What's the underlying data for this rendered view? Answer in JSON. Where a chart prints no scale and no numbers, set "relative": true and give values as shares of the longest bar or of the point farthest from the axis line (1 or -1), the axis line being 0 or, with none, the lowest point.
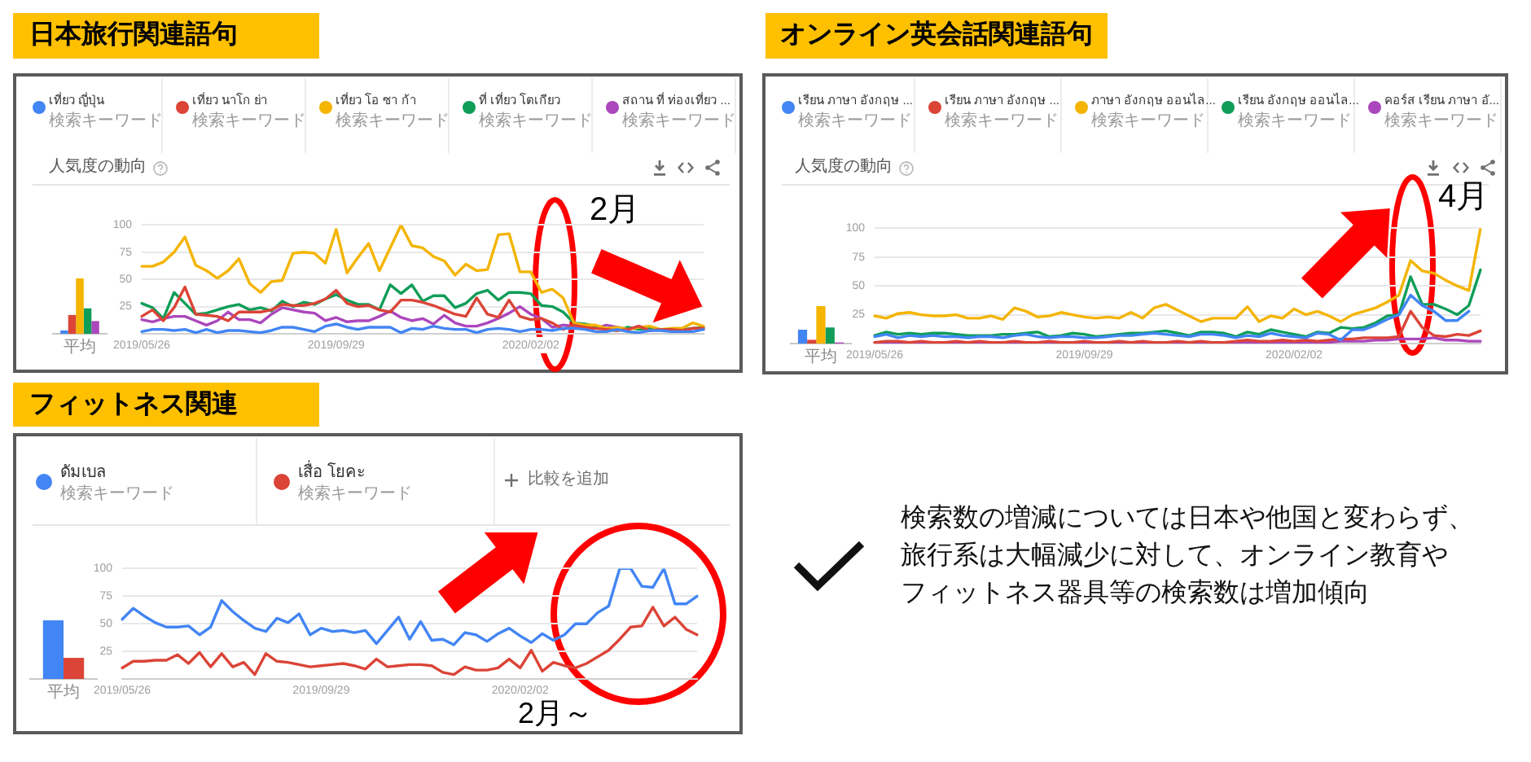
{
  "chart_data": [
    {
      "type": "line",
      "title": "日本旅行関連語句",
      "subtitle": "人気度の動向",
      "legend_title": "検索キーワード",
      "annotations": [
        "2月"
      ],
      "legend": "top",
      "grid": "y",
      "ylim": [
        0,
        100
      ],
      "yticks": [
        25,
        50,
        75,
        100
      ],
      "categories": [
        "2019/05/26",
        null,
        null,
        null,
        null,
        null,
        null,
        null,
        null,
        null,
        null,
        null,
        null,
        null,
        null,
        null,
        null,
        null,
        "2019/09/29",
        null,
        null,
        null,
        null,
        null,
        null,
        null,
        null,
        null,
        null,
        null,
        null,
        null,
        null,
        null,
        null,
        null,
        "2020/02/02",
        null,
        null,
        null,
        null,
        null,
        null,
        null,
        null,
        null,
        null,
        null,
        null,
        null,
        null,
        null,
        null
      ],
      "series": [
        {
          "name": "เที่ยว ญี่ปุ่น",
          "color": "#4285f4",
          "values": [
            2,
            4,
            4,
            3,
            4,
            1,
            4,
            1,
            3,
            3,
            2,
            1,
            3,
            6,
            6,
            4,
            2,
            7,
            9,
            6,
            4,
            6,
            6,
            6,
            1,
            5,
            4,
            7,
            5,
            4,
            4,
            1,
            4,
            5,
            4,
            2,
            4,
            4,
            3,
            5,
            5,
            4,
            2,
            2,
            4,
            2,
            1,
            3,
            3,
            2,
            2,
            2,
            4
          ]
        },
        {
          "name": "เที่ยว นาโก ย่า",
          "color": "#db4437",
          "values": [
            16,
            22,
            12,
            24,
            43,
            18,
            17,
            16,
            12,
            20,
            20,
            20,
            22,
            27,
            26,
            26,
            28,
            32,
            40,
            28,
            25,
            26,
            22,
            20,
            31,
            31,
            29,
            26,
            22,
            18,
            16,
            33,
            18,
            15,
            31,
            16,
            13,
            14,
            10,
            4,
            8,
            6,
            5,
            4,
            3,
            4,
            7,
            3,
            4,
            4,
            3,
            5,
            5
          ]
        },
        {
          "name": "เที่ยว โอ ซา ก้า",
          "color": "#f4b400",
          "values": [
            62,
            62,
            66,
            75,
            89,
            63,
            58,
            51,
            58,
            69,
            46,
            38,
            48,
            49,
            74,
            75,
            74,
            65,
            96,
            56,
            70,
            83,
            58,
            79,
            100,
            81,
            79,
            71,
            67,
            54,
            64,
            58,
            59,
            91,
            92,
            57,
            57,
            38,
            41,
            33,
            10,
            8,
            8,
            5,
            6,
            4,
            6,
            7,
            4,
            5,
            5,
            10,
            7
          ]
        },
        {
          "name": "ที่ เที่ยว โตเกียว",
          "color": "#0f9d58",
          "values": [
            28,
            24,
            14,
            38,
            28,
            18,
            19,
            22,
            25,
            27,
            22,
            24,
            21,
            30,
            25,
            29,
            27,
            32,
            36,
            31,
            27,
            27,
            22,
            45,
            37,
            45,
            30,
            35,
            35,
            24,
            28,
            37,
            40,
            31,
            38,
            38,
            37,
            26,
            25,
            20,
            10,
            9,
            7,
            4,
            3,
            6,
            4,
            5,
            4,
            3,
            4,
            5,
            6
          ]
        },
        {
          "name": "สถาน ที่ ท่องเที่ยว ...",
          "color": "#ab47bc",
          "values": [
            13,
            11,
            14,
            16,
            16,
            12,
            8,
            12,
            20,
            13,
            13,
            10,
            18,
            24,
            22,
            20,
            19,
            12,
            15,
            11,
            12,
            12,
            16,
            21,
            15,
            12,
            14,
            9,
            17,
            10,
            7,
            7,
            10,
            14,
            19,
            25,
            18,
            14,
            6,
            8,
            7,
            5,
            5,
            8,
            6,
            4,
            7,
            3,
            4,
            3,
            2,
            5,
            4
          ]
        }
      ]
    },
    {
      "type": "bar",
      "relative": true,
      "categories": [
        "平均"
      ],
      "series": [
        {
          "color": "#4285f4",
          "values": [
            0.06
          ]
        },
        {
          "color": "#db4437",
          "values": [
            0.34
          ]
        },
        {
          "color": "#f4b400",
          "values": [
            1
          ]
        },
        {
          "color": "#0f9d58",
          "values": [
            0.46
          ]
        },
        {
          "color": "#ab47bc",
          "values": [
            0.23
          ]
        }
      ]
    },
    {
      "type": "line",
      "title": "オンライン英会話関連語句",
      "subtitle": "人気度の動向",
      "legend_title": "検索キーワード",
      "annotations": [
        "4月"
      ],
      "legend": "top",
      "grid": "y",
      "ylim": [
        0,
        100
      ],
      "yticks": [
        25,
        50,
        75,
        100
      ],
      "categories": [
        "2019/05/26",
        null,
        null,
        null,
        null,
        null,
        null,
        null,
        null,
        null,
        null,
        null,
        null,
        null,
        null,
        null,
        null,
        null,
        "2019/09/29",
        null,
        null,
        null,
        null,
        null,
        null,
        null,
        null,
        null,
        null,
        null,
        null,
        null,
        null,
        null,
        null,
        null,
        "2020/02/02",
        null,
        null,
        null,
        null,
        null,
        null,
        null,
        null,
        null,
        null,
        null,
        null,
        null,
        null,
        null,
        null
      ],
      "series": [
        {
          "name": "เรียน ภาษา อังกฤษ ...",
          "color": "#4285f4",
          "values": [
            6,
            8,
            5,
            7,
            6,
            7,
            6,
            6,
            5,
            6,
            6,
            5,
            7,
            8,
            6,
            5,
            6,
            6,
            5,
            5,
            6,
            7,
            7,
            8,
            9,
            8,
            7,
            6,
            8,
            8,
            7,
            5,
            7,
            6,
            9,
            7,
            6,
            5,
            9,
            8,
            3,
            12,
            12,
            16,
            21,
            25,
            42,
            33,
            28,
            20,
            20,
            28,
            null
          ]
        },
        {
          "name": "เรียน ภาษา อังกฤษ ...",
          "color": "#db4437",
          "values": [
            1,
            2,
            2,
            1,
            2,
            1,
            1,
            2,
            1,
            2,
            1,
            1,
            2,
            1,
            1,
            2,
            1,
            1,
            2,
            1,
            1,
            2,
            1,
            2,
            1,
            1,
            2,
            1,
            2,
            1,
            1,
            2,
            3,
            2,
            2,
            3,
            2,
            3,
            2,
            3,
            4,
            4,
            5,
            5,
            5,
            6,
            28,
            14,
            7,
            6,
            8,
            7,
            11
          ]
        },
        {
          "name": "ภาษา อังกฤษ ออนไล...",
          "color": "#f4b400",
          "values": [
            24,
            22,
            26,
            27,
            25,
            24,
            24,
            25,
            22,
            22,
            24,
            21,
            31,
            28,
            23,
            24,
            27,
            25,
            23,
            22,
            23,
            22,
            27,
            22,
            31,
            34,
            29,
            24,
            19,
            22,
            22,
            22,
            32,
            19,
            24,
            22,
            30,
            25,
            28,
            24,
            19,
            25,
            28,
            31,
            36,
            42,
            72,
            63,
            61,
            55,
            50,
            46,
            100
          ]
        },
        {
          "name": "เรียน อังกฤษ ออนไล...",
          "color": "#0f9d58",
          "values": [
            7,
            10,
            8,
            9,
            8,
            9,
            9,
            8,
            7,
            7,
            7,
            8,
            8,
            9,
            10,
            6,
            7,
            9,
            8,
            6,
            7,
            8,
            9,
            9,
            10,
            11,
            9,
            7,
            10,
            10,
            9,
            6,
            10,
            8,
            12,
            10,
            8,
            6,
            10,
            9,
            14,
            13,
            14,
            18,
            24,
            25,
            58,
            34,
            34,
            30,
            25,
            33,
            64
          ]
        },
        {
          "name": "คอร์ส เรียน ภาษา อั...",
          "color": "#ab47bc",
          "values": [
            1,
            1,
            1,
            1,
            1,
            1,
            1,
            1,
            1,
            1,
            1,
            1,
            1,
            1,
            1,
            1,
            1,
            1,
            1,
            1,
            1,
            1,
            1,
            1,
            1,
            1,
            1,
            1,
            1,
            1,
            1,
            1,
            1,
            1,
            1,
            1,
            1,
            1,
            1,
            1,
            2,
            2,
            2,
            3,
            3,
            4,
            4,
            4,
            5,
            3,
            3,
            2,
            2
          ]
        }
      ]
    },
    {
      "type": "bar",
      "relative": true,
      "categories": [
        "平均"
      ],
      "series": [
        {
          "color": "#4285f4",
          "values": [
            0.37
          ]
        },
        {
          "color": "#db4437",
          "values": [
            0.1
          ]
        },
        {
          "color": "#f4b400",
          "values": [
            1
          ]
        },
        {
          "color": "#0f9d58",
          "values": [
            0.43
          ]
        },
        {
          "color": "#ab47bc",
          "values": [
            0.03
          ]
        }
      ]
    },
    {
      "type": "line",
      "title": "フィットネス関連",
      "legend_title": "検索キーワード",
      "annotations": [
        "比較を追加",
        "2月～"
      ],
      "legend": "top",
      "grid": "y",
      "ylim": [
        0,
        100
      ],
      "yticks": [
        25,
        50,
        75,
        100
      ],
      "categories": [
        "2019/05/26",
        null,
        null,
        null,
        null,
        null,
        null,
        null,
        null,
        null,
        null,
        null,
        null,
        null,
        null,
        null,
        null,
        null,
        "2019/09/29",
        null,
        null,
        null,
        null,
        null,
        null,
        null,
        null,
        null,
        null,
        null,
        null,
        null,
        null,
        null,
        null,
        null,
        "2020/02/02",
        null,
        null,
        null,
        null,
        null,
        null,
        null,
        null,
        null,
        null,
        null,
        null,
        null,
        null,
        null,
        null
      ],
      "series": [
        {
          "name": "ดัมเบล",
          "color": "#4285f4",
          "values": [
            54,
            64,
            57,
            51,
            47,
            47,
            48,
            40,
            47,
            71,
            61,
            53,
            46,
            43,
            55,
            51,
            59,
            40,
            46,
            43,
            44,
            42,
            44,
            32,
            44,
            56,
            36,
            52,
            35,
            36,
            31,
            42,
            40,
            34,
            41,
            46,
            39,
            33,
            41,
            35,
            40,
            50,
            50,
            60,
            66,
            100,
            100,
            84,
            83,
            100,
            68,
            68,
            75
          ]
        },
        {
          "name": "เสื่อ โยคะ",
          "color": "#db4437",
          "values": [
            10,
            16,
            16,
            17,
            17,
            22,
            14,
            24,
            11,
            23,
            11,
            15,
            4,
            23,
            16,
            15,
            13,
            11,
            12,
            13,
            14,
            12,
            9,
            18,
            11,
            12,
            13,
            13,
            12,
            6,
            4,
            11,
            8,
            8,
            10,
            18,
            10,
            26,
            7,
            15,
            12,
            10,
            14,
            20,
            26,
            36,
            47,
            48,
            65,
            48,
            56,
            45,
            40
          ]
        }
      ]
    },
    {
      "type": "bar",
      "relative": true,
      "categories": [
        "平均"
      ],
      "series": [
        {
          "color": "#4285f4",
          "values": [
            1
          ]
        },
        {
          "color": "#db4437",
          "values": [
            0.36
          ]
        }
      ]
    },
    {
      "type": "other",
      "annotations": [
        "検索数の増減については日本や他国と変わらず、",
        "旅行系は大幅減少に対して、オンライン教育や",
        "フィットネス器具等の検索数は増加傾向"
      ]
    }
  ]
}
